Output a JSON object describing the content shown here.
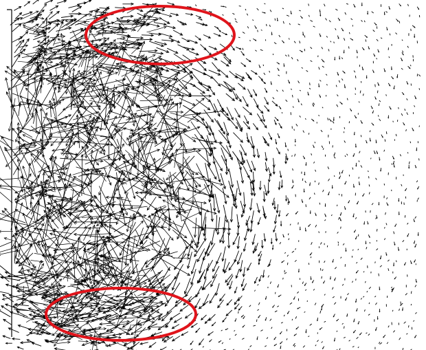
{
  "figure": {
    "kind": "vector-field",
    "arrow_color": "#000000",
    "background_color": "#ffffff",
    "axis_color": "#000000",
    "highlight_color": "#e0141b",
    "highlights": [
      {
        "name": "upper-region"
      },
      {
        "name": "lower-region"
      }
    ]
  }
}
